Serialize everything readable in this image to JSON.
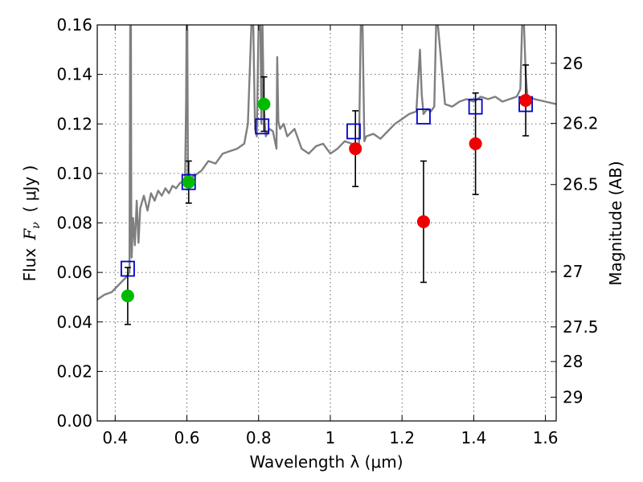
{
  "chart_data": {
    "type": "scatter",
    "title": "",
    "xlabel": "Wavelength  λ (μm)",
    "ylabel": "Flux  F_ν  ( μJy )",
    "ylabel_parts": {
      "prefix": "Flux",
      "symbol": "F",
      "subscript": "ν",
      "units": "( μJy )"
    },
    "ylabel_right": "Magnitude (AB)",
    "xlim": [
      0.35,
      1.63
    ],
    "ylim": [
      0,
      0.16
    ],
    "grid": true,
    "x_ticks": [
      {
        "value": 0.4,
        "label": "0.4"
      },
      {
        "value": 0.6,
        "label": "0.6"
      },
      {
        "value": 0.8,
        "label": "0.8"
      },
      {
        "value": 1.0,
        "label": "1"
      },
      {
        "value": 1.2,
        "label": "1.2"
      },
      {
        "value": 1.4,
        "label": "1.4"
      },
      {
        "value": 1.6,
        "label": "1.6"
      }
    ],
    "y_ticks": [
      {
        "value": 0.0,
        "label": "0.00"
      },
      {
        "value": 0.02,
        "label": "0.02"
      },
      {
        "value": 0.04,
        "label": "0.04"
      },
      {
        "value": 0.06,
        "label": "0.06"
      },
      {
        "value": 0.08,
        "label": "0.08"
      },
      {
        "value": 0.1,
        "label": "0.10"
      },
      {
        "value": 0.12,
        "label": "0.12"
      },
      {
        "value": 0.14,
        "label": "0.14"
      },
      {
        "value": 0.16,
        "label": "0.16"
      }
    ],
    "right_ticks": [
      {
        "flux": 0.1445,
        "label": "26"
      },
      {
        "flux": 0.1202,
        "label": "26.2"
      },
      {
        "flux": 0.0955,
        "label": "26.5"
      },
      {
        "flux": 0.0603,
        "label": "27"
      },
      {
        "flux": 0.038,
        "label": "27.5"
      },
      {
        "flux": 0.024,
        "label": "28"
      },
      {
        "flux": 0.0096,
        "label": "29"
      }
    ],
    "series": [
      {
        "name": "model spectrum",
        "kind": "line",
        "color": "#7f7f7f",
        "x": [
          0.35,
          0.37,
          0.39,
          0.41,
          0.43,
          0.44,
          0.442,
          0.444,
          0.445,
          0.446,
          0.448,
          0.45,
          0.455,
          0.46,
          0.465,
          0.47,
          0.48,
          0.49,
          0.5,
          0.51,
          0.52,
          0.53,
          0.54,
          0.55,
          0.56,
          0.57,
          0.58,
          0.59,
          0.595,
          0.598,
          0.599,
          0.601,
          0.603,
          0.61,
          0.62,
          0.64,
          0.66,
          0.68,
          0.7,
          0.72,
          0.74,
          0.76,
          0.77,
          0.78,
          0.785,
          0.79,
          0.795,
          0.8,
          0.805,
          0.808,
          0.811,
          0.814,
          0.817,
          0.82,
          0.83,
          0.84,
          0.85,
          0.852,
          0.855,
          0.86,
          0.87,
          0.88,
          0.9,
          0.92,
          0.94,
          0.96,
          0.98,
          1.0,
          1.02,
          1.04,
          1.06,
          1.08,
          1.085,
          1.09,
          1.095,
          1.1,
          1.12,
          1.14,
          1.16,
          1.18,
          1.2,
          1.22,
          1.24,
          1.25,
          1.255,
          1.26,
          1.27,
          1.28,
          1.29,
          1.295,
          1.3,
          1.32,
          1.34,
          1.36,
          1.38,
          1.4,
          1.42,
          1.44,
          1.46,
          1.48,
          1.5,
          1.52,
          1.53,
          1.535,
          1.54,
          1.545,
          1.55,
          1.57,
          1.6,
          1.63
        ],
        "y": [
          0.049,
          0.051,
          0.052,
          0.055,
          0.058,
          0.06,
          0.16,
          0.16,
          0.075,
          0.066,
          0.074,
          0.082,
          0.071,
          0.089,
          0.072,
          0.086,
          0.091,
          0.085,
          0.092,
          0.089,
          0.093,
          0.091,
          0.094,
          0.092,
          0.095,
          0.094,
          0.096,
          0.097,
          0.098,
          0.13,
          0.16,
          0.16,
          0.099,
          0.098,
          0.099,
          0.101,
          0.105,
          0.104,
          0.108,
          0.109,
          0.11,
          0.112,
          0.12,
          0.16,
          0.16,
          0.118,
          0.115,
          0.16,
          0.16,
          0.12,
          0.16,
          0.13,
          0.121,
          0.115,
          0.118,
          0.117,
          0.11,
          0.147,
          0.121,
          0.118,
          0.12,
          0.115,
          0.118,
          0.11,
          0.108,
          0.111,
          0.112,
          0.108,
          0.11,
          0.113,
          0.112,
          0.11,
          0.16,
          0.16,
          0.113,
          0.115,
          0.116,
          0.114,
          0.117,
          0.12,
          0.122,
          0.124,
          0.125,
          0.15,
          0.132,
          0.124,
          0.126,
          0.125,
          0.127,
          0.16,
          0.16,
          0.128,
          0.127,
          0.129,
          0.13,
          0.129,
          0.131,
          0.13,
          0.131,
          0.129,
          0.13,
          0.131,
          0.134,
          0.16,
          0.16,
          0.14,
          0.131,
          0.13,
          0.129,
          0.128
        ]
      },
      {
        "name": "model photometry",
        "kind": "markers",
        "marker": "open-square",
        "color": "#0000cc",
        "x": [
          0.435,
          0.605,
          0.81,
          1.065,
          1.26,
          1.405,
          1.545
        ],
        "y": [
          0.0615,
          0.0965,
          0.119,
          0.117,
          0.123,
          0.127,
          0.128
        ]
      },
      {
        "name": "observed (green)",
        "kind": "markers",
        "marker": "filled-circle",
        "color": "#00bb00",
        "x": [
          0.435,
          0.605,
          0.815
        ],
        "y": [
          0.0505,
          0.0965,
          0.128
        ],
        "yerr": [
          0.0115,
          0.0085,
          0.011
        ]
      },
      {
        "name": "observed (red)",
        "kind": "markers",
        "marker": "filled-circle",
        "color": "#ee0000",
        "x": [
          1.07,
          1.26,
          1.405,
          1.545
        ],
        "y": [
          0.11,
          0.0805,
          0.112,
          0.1295
        ],
        "yerr": [
          0.0153,
          0.0245,
          0.0205,
          0.0143
        ]
      }
    ]
  }
}
